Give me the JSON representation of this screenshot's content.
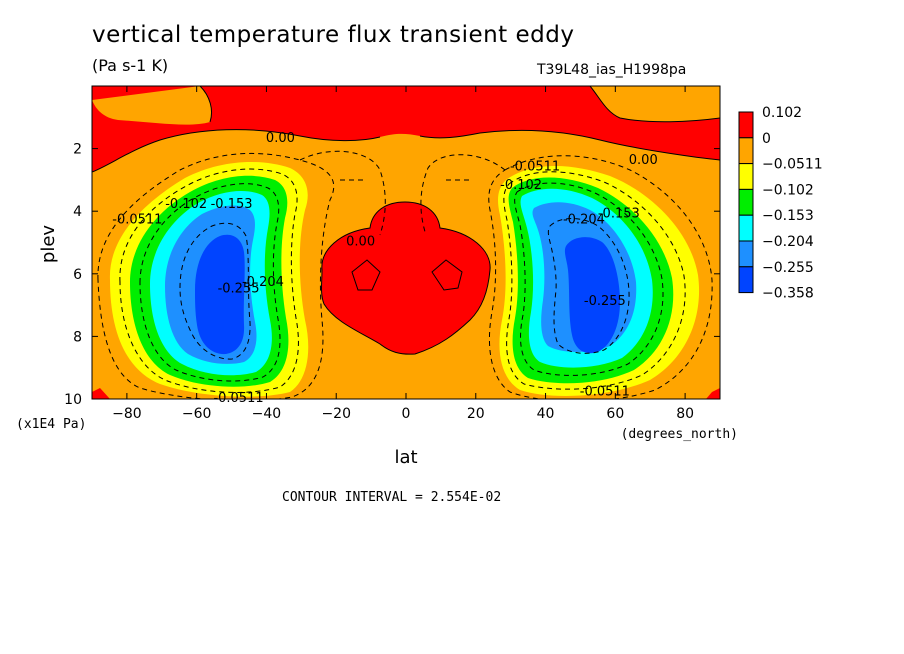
{
  "chart_data": {
    "type": "heatmap",
    "title": "vertical temperature flux transient eddy",
    "units": "(Pa s-1 K)",
    "run_label": "T39L48_ias_H1998pa",
    "xlabel": "lat",
    "x_units": "(degrees_north)",
    "ylabel": "plev",
    "y_units": "(x1E4 Pa)",
    "xlim": [
      -90,
      90
    ],
    "ylim": [
      10,
      0
    ],
    "x_ticks": [
      "-80",
      "-60",
      "-40",
      "-20",
      "0",
      "20",
      "40",
      "60",
      "80"
    ],
    "y_ticks": [
      "2",
      "4",
      "6",
      "8",
      "10"
    ],
    "contour_interval_label": "CONTOUR INTERVAL = 2.554E-02",
    "legend_labels": [
      "0.102",
      "0",
      "−0.0511",
      "−0.102",
      "−0.153",
      "−0.204",
      "−0.255",
      "−0.358"
    ],
    "colors": [
      "#ff0000",
      "#ffa500",
      "#ffff00",
      "#00ee00",
      "#00ffff",
      "#1e90ff",
      "#0044ff"
    ],
    "contour_labels": [
      {
        "text": "0.00",
        "lat": -36,
        "plev": 1.7
      },
      {
        "text": "0.00",
        "lat": 68,
        "plev": 2.4
      },
      {
        "text": "0.00",
        "lat": -13,
        "plev": 5.0
      },
      {
        "text": "-0.0511",
        "lat": -77,
        "plev": 4.3
      },
      {
        "text": "-0.102",
        "lat": -63,
        "plev": 3.8
      },
      {
        "text": "-0.153",
        "lat": -50,
        "plev": 3.8
      },
      {
        "text": "-0.255",
        "lat": -48,
        "plev": 6.5
      },
      {
        "text": "-0.204",
        "lat": -41,
        "plev": 6.3
      },
      {
        "text": "-0.0511",
        "lat": 37,
        "plev": 2.6
      },
      {
        "text": "-0.102",
        "lat": 33,
        "plev": 3.2
      },
      {
        "text": "-0.153",
        "lat": 61,
        "plev": 4.1
      },
      {
        "text": "-0.204",
        "lat": 51,
        "plev": 4.3
      },
      {
        "text": "-0.255",
        "lat": 57,
        "plev": 6.9
      },
      {
        "text": "-0.0511",
        "lat": -48,
        "plev": 10.0
      },
      {
        "text": "-0.0511",
        "lat": 57,
        "plev": 9.8
      }
    ]
  }
}
